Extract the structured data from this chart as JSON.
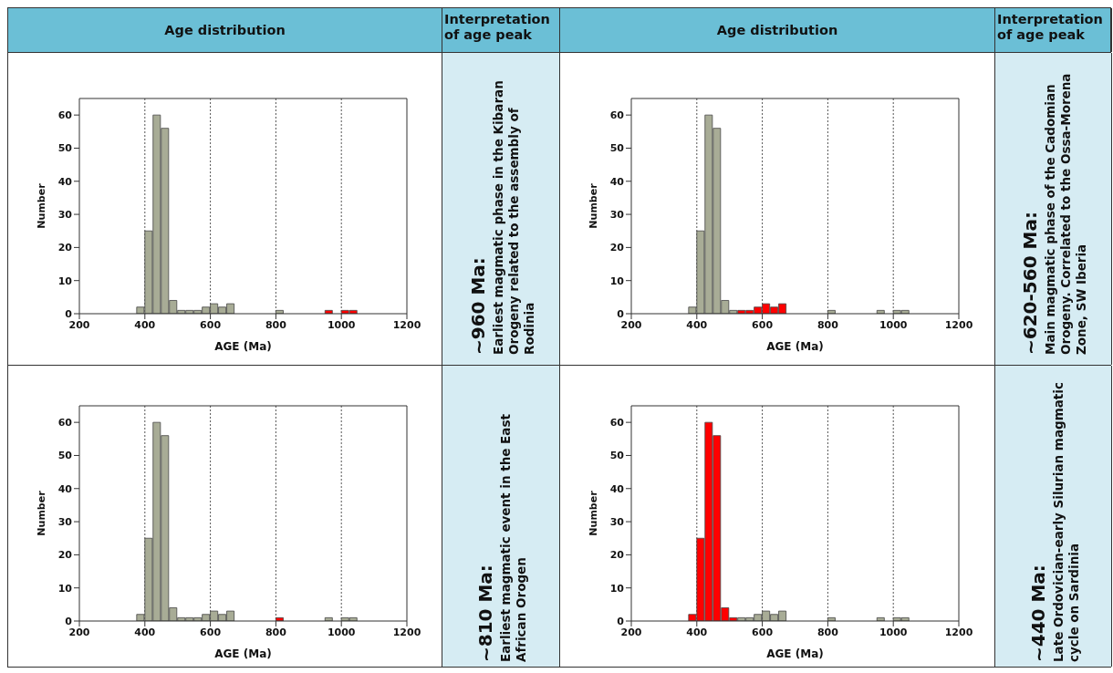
{
  "chart_data": [
    {
      "type": "other",
      "annotations": [
        "Age distribution",
        "Interpretation of age peak",
        "Age distribution",
        "Interpretation of age peak"
      ]
    },
    {
      "type": "histogram",
      "xlabel": "AGE (Ma)",
      "ylabel": "Number",
      "bins": [
        200,
        225,
        250,
        275,
        300,
        325,
        350,
        375,
        400,
        425,
        450,
        475,
        500,
        525,
        550,
        575,
        600,
        625,
        650,
        675,
        700,
        725,
        750,
        775,
        800,
        825,
        850,
        875,
        900,
        925,
        950,
        975,
        1000,
        1025,
        1050,
        1075,
        1100,
        1125,
        1150,
        1175,
        1200
      ],
      "series": [
        {
          "color": "#a8ac96",
          "values": [
            0,
            0,
            0,
            0,
            0,
            0,
            0,
            2,
            25,
            60,
            56,
            4,
            1,
            1,
            1,
            2,
            3,
            2,
            3,
            0,
            0,
            0,
            0,
            0,
            1,
            0,
            0,
            0,
            0,
            0,
            null,
            0,
            null,
            null,
            0,
            0,
            0,
            0,
            0,
            0
          ]
        },
        {
          "color": "#ff0000",
          "values": [
            null,
            null,
            null,
            null,
            null,
            null,
            null,
            null,
            null,
            null,
            null,
            null,
            null,
            null,
            null,
            null,
            null,
            null,
            null,
            null,
            null,
            null,
            null,
            null,
            null,
            null,
            null,
            null,
            null,
            null,
            1,
            null,
            1,
            1,
            null,
            null,
            null,
            null,
            null,
            null
          ]
        }
      ],
      "xlim": [
        200,
        1200
      ],
      "ylim": [
        0,
        65
      ],
      "xticks": [
        200,
        400,
        600,
        800,
        1000,
        1200
      ],
      "yticks": [
        0,
        10,
        20,
        30,
        40,
        50,
        60
      ],
      "grid": "x",
      "annotations": [
        "~960 Ma:",
        "Earliest magmatic phase in the Kibaran Orogeny related to the assembly of Rodinia"
      ]
    },
    {
      "type": "histogram",
      "xlabel": "AGE (Ma)",
      "ylabel": "Number",
      "bins": [
        200,
        225,
        250,
        275,
        300,
        325,
        350,
        375,
        400,
        425,
        450,
        475,
        500,
        525,
        550,
        575,
        600,
        625,
        650,
        675,
        700,
        725,
        750,
        775,
        800,
        825,
        850,
        875,
        900,
        925,
        950,
        975,
        1000,
        1025,
        1050,
        1075,
        1100,
        1125,
        1150,
        1175,
        1200
      ],
      "series": [
        {
          "color": "#a8ac96",
          "values": [
            0,
            0,
            0,
            0,
            0,
            0,
            0,
            2,
            25,
            60,
            56,
            4,
            1,
            null,
            null,
            null,
            null,
            null,
            null,
            0,
            0,
            0,
            0,
            0,
            1,
            0,
            0,
            0,
            0,
            0,
            1,
            0,
            1,
            1,
            0,
            0,
            0,
            0,
            0,
            0
          ]
        },
        {
          "color": "#ff0000",
          "values": [
            null,
            null,
            null,
            null,
            null,
            null,
            null,
            null,
            null,
            null,
            null,
            null,
            null,
            1,
            1,
            2,
            3,
            2,
            3,
            null,
            null,
            null,
            null,
            null,
            null,
            null,
            null,
            null,
            null,
            null,
            null,
            null,
            null,
            null,
            null,
            null,
            null,
            null,
            null,
            null
          ]
        }
      ],
      "xlim": [
        200,
        1200
      ],
      "ylim": [
        0,
        65
      ],
      "xticks": [
        200,
        400,
        600,
        800,
        1000,
        1200
      ],
      "yticks": [
        0,
        10,
        20,
        30,
        40,
        50,
        60
      ],
      "grid": "x",
      "annotations": [
        "~620-560 Ma:",
        "Main magmatic phase of the Cadomian Orogeny. Correlated to the Ossa-Morena Zone, SW Iberia"
      ]
    },
    {
      "type": "histogram",
      "xlabel": "AGE (Ma)",
      "ylabel": "Number",
      "bins": [
        200,
        225,
        250,
        275,
        300,
        325,
        350,
        375,
        400,
        425,
        450,
        475,
        500,
        525,
        550,
        575,
        600,
        625,
        650,
        675,
        700,
        725,
        750,
        775,
        800,
        825,
        850,
        875,
        900,
        925,
        950,
        975,
        1000,
        1025,
        1050,
        1075,
        1100,
        1125,
        1150,
        1175,
        1200
      ],
      "series": [
        {
          "color": "#a8ac96",
          "values": [
            0,
            0,
            0,
            0,
            0,
            0,
            0,
            2,
            25,
            60,
            56,
            4,
            1,
            1,
            1,
            2,
            3,
            2,
            3,
            0,
            0,
            0,
            0,
            0,
            null,
            0,
            0,
            0,
            0,
            0,
            1,
            0,
            1,
            1,
            0,
            0,
            0,
            0,
            0,
            0
          ]
        },
        {
          "color": "#ff0000",
          "values": [
            null,
            null,
            null,
            null,
            null,
            null,
            null,
            null,
            null,
            null,
            null,
            null,
            null,
            null,
            null,
            null,
            null,
            null,
            null,
            null,
            null,
            null,
            null,
            null,
            1,
            null,
            null,
            null,
            null,
            null,
            null,
            null,
            null,
            null,
            null,
            null,
            null,
            null,
            null,
            null
          ]
        }
      ],
      "xlim": [
        200,
        1200
      ],
      "ylim": [
        0,
        65
      ],
      "xticks": [
        200,
        400,
        600,
        800,
        1000,
        1200
      ],
      "yticks": [
        0,
        10,
        20,
        30,
        40,
        50,
        60
      ],
      "grid": "x",
      "annotations": [
        "~810 Ma:",
        "Earliest magmatic event in the East African Orogen"
      ]
    },
    {
      "type": "histogram",
      "xlabel": "AGE (Ma)",
      "ylabel": "Number",
      "bins": [
        200,
        225,
        250,
        275,
        300,
        325,
        350,
        375,
        400,
        425,
        450,
        475,
        500,
        525,
        550,
        575,
        600,
        625,
        650,
        675,
        700,
        725,
        750,
        775,
        800,
        825,
        850,
        875,
        900,
        925,
        950,
        975,
        1000,
        1025,
        1050,
        1075,
        1100,
        1125,
        1150,
        1175,
        1200
      ],
      "series": [
        {
          "color": "#a8ac96",
          "values": [
            0,
            0,
            0,
            0,
            0,
            0,
            0,
            null,
            null,
            null,
            null,
            null,
            null,
            1,
            1,
            2,
            3,
            2,
            3,
            0,
            0,
            0,
            0,
            0,
            1,
            0,
            0,
            0,
            0,
            0,
            1,
            0,
            1,
            1,
            0,
            0,
            0,
            0,
            0,
            0
          ]
        },
        {
          "color": "#ff0000",
          "values": [
            null,
            null,
            null,
            null,
            null,
            null,
            null,
            2,
            25,
            60,
            56,
            4,
            1,
            null,
            null,
            null,
            null,
            null,
            null,
            null,
            null,
            null,
            null,
            null,
            null,
            null,
            null,
            null,
            null,
            null,
            null,
            null,
            null,
            null,
            null,
            null,
            null,
            null,
            null,
            null
          ]
        }
      ],
      "xlim": [
        200,
        1200
      ],
      "ylim": [
        0,
        65
      ],
      "xticks": [
        200,
        400,
        600,
        800,
        1000,
        1200
      ],
      "yticks": [
        0,
        10,
        20,
        30,
        40,
        50,
        60
      ],
      "grid": "x",
      "annotations": [
        "~440 Ma:",
        "Late Ordovician-early Silurian magmatic cycle on Sardinia"
      ]
    }
  ]
}
